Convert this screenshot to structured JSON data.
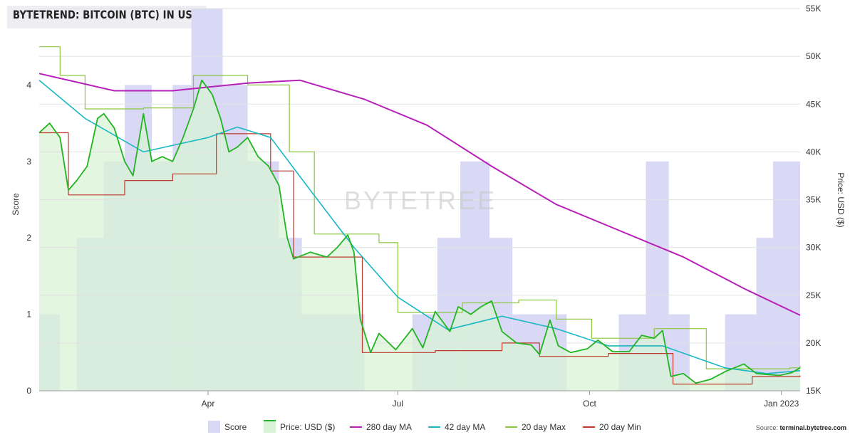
{
  "chart_data": {
    "type": "line",
    "title": "BYTETREND: BITCOIN (BTC) IN USD ($)",
    "watermark": "BYTETREE",
    "source_label": "Source: ",
    "source_site": "terminal.bytetree.com",
    "left_axis": {
      "label": "Score",
      "min": 0,
      "max": 5,
      "ticks": [
        "0",
        "1",
        "2",
        "3",
        "4"
      ]
    },
    "right_axis": {
      "label": "Price: USD ($)",
      "min": 15000,
      "max": 55000,
      "ticks": [
        "15K",
        "20K",
        "25K",
        "30K",
        "35K",
        "40K",
        "45K",
        "50K",
        "55K"
      ]
    },
    "x_axis": {
      "start": "2022-01-10",
      "end": "2023-01-10",
      "ticks": [
        {
          "date": "2022-04-01",
          "label": "Apr"
        },
        {
          "date": "2022-07-01",
          "label": "Jul"
        },
        {
          "date": "2022-10-01",
          "label": "Oct"
        },
        {
          "date": "2023-01-01",
          "label": "Jan 2023"
        }
      ]
    },
    "legend": [
      "Score",
      "Price: USD ($)",
      "280 day MA",
      "42 day MA",
      "20 day Max",
      "20 day Min"
    ],
    "colors": {
      "score": "#d9d9f5",
      "price_fill": "#d8f3d6",
      "price": "#22b422",
      "ma280": "#b81fb8",
      "ma42": "#1ab8c4",
      "max20": "#8cc63f",
      "min20": "#c0392b"
    },
    "score_series": [
      {
        "date": "2022-01-10",
        "value": 1
      },
      {
        "date": "2022-01-20",
        "value": 0
      },
      {
        "date": "2022-01-28",
        "value": 2
      },
      {
        "date": "2022-02-10",
        "value": 3
      },
      {
        "date": "2022-02-20",
        "value": 4
      },
      {
        "date": "2022-03-05",
        "value": 3
      },
      {
        "date": "2022-03-15",
        "value": 4
      },
      {
        "date": "2022-03-24",
        "value": 5
      },
      {
        "date": "2022-04-08",
        "value": 4
      },
      {
        "date": "2022-04-20",
        "value": 3
      },
      {
        "date": "2022-05-05",
        "value": 2
      },
      {
        "date": "2022-05-16",
        "value": 1
      },
      {
        "date": "2022-06-10",
        "value": 1
      },
      {
        "date": "2022-06-15",
        "value": 0
      },
      {
        "date": "2022-06-27",
        "value": 0
      },
      {
        "date": "2022-07-08",
        "value": 1
      },
      {
        "date": "2022-07-20",
        "value": 2
      },
      {
        "date": "2022-07-31",
        "value": 3
      },
      {
        "date": "2022-08-14",
        "value": 2
      },
      {
        "date": "2022-08-25",
        "value": 1
      },
      {
        "date": "2022-09-10",
        "value": 1
      },
      {
        "date": "2022-09-20",
        "value": 0
      },
      {
        "date": "2022-10-05",
        "value": 0
      },
      {
        "date": "2022-10-15",
        "value": 1
      },
      {
        "date": "2022-10-28",
        "value": 3
      },
      {
        "date": "2022-11-08",
        "value": 1
      },
      {
        "date": "2022-11-18",
        "value": 0
      },
      {
        "date": "2022-12-05",
        "value": 1
      },
      {
        "date": "2022-12-20",
        "value": 2
      },
      {
        "date": "2022-12-28",
        "value": 3
      },
      {
        "date": "2023-01-10",
        "value": 3
      }
    ],
    "series": [
      {
        "name": "Price: USD ($)",
        "values": [
          {
            "date": "2022-01-10",
            "value": 42000
          },
          {
            "date": "2022-01-15",
            "value": 43000
          },
          {
            "date": "2022-01-20",
            "value": 41500
          },
          {
            "date": "2022-01-24",
            "value": 36000
          },
          {
            "date": "2022-01-28",
            "value": 37000
          },
          {
            "date": "2022-02-02",
            "value": 38500
          },
          {
            "date": "2022-02-07",
            "value": 43500
          },
          {
            "date": "2022-02-10",
            "value": 44000
          },
          {
            "date": "2022-02-15",
            "value": 42500
          },
          {
            "date": "2022-02-20",
            "value": 39000
          },
          {
            "date": "2022-02-24",
            "value": 37500
          },
          {
            "date": "2022-03-01",
            "value": 44000
          },
          {
            "date": "2022-03-05",
            "value": 39000
          },
          {
            "date": "2022-03-10",
            "value": 39500
          },
          {
            "date": "2022-03-15",
            "value": 39000
          },
          {
            "date": "2022-03-20",
            "value": 41500
          },
          {
            "date": "2022-03-25",
            "value": 44500
          },
          {
            "date": "2022-03-29",
            "value": 47500
          },
          {
            "date": "2022-04-03",
            "value": 46000
          },
          {
            "date": "2022-04-07",
            "value": 43500
          },
          {
            "date": "2022-04-11",
            "value": 40000
          },
          {
            "date": "2022-04-15",
            "value": 40500
          },
          {
            "date": "2022-04-20",
            "value": 41500
          },
          {
            "date": "2022-04-25",
            "value": 39500
          },
          {
            "date": "2022-04-30",
            "value": 38500
          },
          {
            "date": "2022-05-05",
            "value": 36500
          },
          {
            "date": "2022-05-09",
            "value": 31000
          },
          {
            "date": "2022-05-12",
            "value": 28800
          },
          {
            "date": "2022-05-20",
            "value": 29500
          },
          {
            "date": "2022-05-28",
            "value": 29000
          },
          {
            "date": "2022-06-02",
            "value": 30000
          },
          {
            "date": "2022-06-07",
            "value": 31300
          },
          {
            "date": "2022-06-10",
            "value": 29500
          },
          {
            "date": "2022-06-13",
            "value": 22500
          },
          {
            "date": "2022-06-18",
            "value": 19000
          },
          {
            "date": "2022-06-22",
            "value": 21000
          },
          {
            "date": "2022-06-30",
            "value": 19300
          },
          {
            "date": "2022-07-08",
            "value": 21500
          },
          {
            "date": "2022-07-13",
            "value": 19500
          },
          {
            "date": "2022-07-19",
            "value": 23300
          },
          {
            "date": "2022-07-26",
            "value": 21200
          },
          {
            "date": "2022-07-30",
            "value": 23800
          },
          {
            "date": "2022-08-05",
            "value": 23000
          },
          {
            "date": "2022-08-10",
            "value": 23800
          },
          {
            "date": "2022-08-15",
            "value": 24400
          },
          {
            "date": "2022-08-20",
            "value": 21200
          },
          {
            "date": "2022-08-27",
            "value": 20000
          },
          {
            "date": "2022-09-03",
            "value": 19800
          },
          {
            "date": "2022-09-07",
            "value": 18800
          },
          {
            "date": "2022-09-12",
            "value": 22400
          },
          {
            "date": "2022-09-16",
            "value": 19700
          },
          {
            "date": "2022-09-22",
            "value": 19000
          },
          {
            "date": "2022-09-30",
            "value": 19400
          },
          {
            "date": "2022-10-05",
            "value": 20300
          },
          {
            "date": "2022-10-12",
            "value": 19100
          },
          {
            "date": "2022-10-20",
            "value": 19100
          },
          {
            "date": "2022-10-26",
            "value": 20800
          },
          {
            "date": "2022-11-01",
            "value": 20500
          },
          {
            "date": "2022-11-05",
            "value": 21300
          },
          {
            "date": "2022-11-09",
            "value": 16500
          },
          {
            "date": "2022-11-15",
            "value": 16800
          },
          {
            "date": "2022-11-21",
            "value": 15800
          },
          {
            "date": "2022-11-28",
            "value": 16200
          },
          {
            "date": "2022-12-05",
            "value": 17000
          },
          {
            "date": "2022-12-14",
            "value": 17800
          },
          {
            "date": "2022-12-20",
            "value": 16800
          },
          {
            "date": "2022-12-31",
            "value": 16600
          },
          {
            "date": "2023-01-06",
            "value": 16900
          },
          {
            "date": "2023-01-10",
            "value": 17400
          }
        ]
      },
      {
        "name": "280 day MA",
        "values": [
          {
            "date": "2022-01-10",
            "value": 48200
          },
          {
            "date": "2022-02-15",
            "value": 46400
          },
          {
            "date": "2022-03-15",
            "value": 46400
          },
          {
            "date": "2022-04-20",
            "value": 47200
          },
          {
            "date": "2022-05-15",
            "value": 47500
          },
          {
            "date": "2022-06-15",
            "value": 45500
          },
          {
            "date": "2022-07-15",
            "value": 42800
          },
          {
            "date": "2022-08-15",
            "value": 38500
          },
          {
            "date": "2022-09-15",
            "value": 34500
          },
          {
            "date": "2022-10-15",
            "value": 31800
          },
          {
            "date": "2022-11-15",
            "value": 29000
          },
          {
            "date": "2022-12-15",
            "value": 25600
          },
          {
            "date": "2023-01-10",
            "value": 22900
          }
        ]
      },
      {
        "name": "42 day MA",
        "values": [
          {
            "date": "2022-01-10",
            "value": 47500
          },
          {
            "date": "2022-02-01",
            "value": 43500
          },
          {
            "date": "2022-03-01",
            "value": 40000
          },
          {
            "date": "2022-04-01",
            "value": 41500
          },
          {
            "date": "2022-04-15",
            "value": 42600
          },
          {
            "date": "2022-05-01",
            "value": 41500
          },
          {
            "date": "2022-05-20",
            "value": 36000
          },
          {
            "date": "2022-06-10",
            "value": 30000
          },
          {
            "date": "2022-07-01",
            "value": 24800
          },
          {
            "date": "2022-07-25",
            "value": 21400
          },
          {
            "date": "2022-08-20",
            "value": 22800
          },
          {
            "date": "2022-09-15",
            "value": 21500
          },
          {
            "date": "2022-10-10",
            "value": 19700
          },
          {
            "date": "2022-11-05",
            "value": 19700
          },
          {
            "date": "2022-12-05",
            "value": 17400
          },
          {
            "date": "2022-12-25",
            "value": 16800
          },
          {
            "date": "2023-01-10",
            "value": 17100
          }
        ]
      },
      {
        "name": "20 day Max",
        "values": [
          {
            "date": "2022-01-10",
            "value": 51000
          },
          {
            "date": "2022-01-20",
            "value": 48000
          },
          {
            "date": "2022-02-01",
            "value": 44500
          },
          {
            "date": "2022-03-01",
            "value": 44600
          },
          {
            "date": "2022-03-25",
            "value": 48000
          },
          {
            "date": "2022-04-20",
            "value": 47000
          },
          {
            "date": "2022-05-10",
            "value": 40000
          },
          {
            "date": "2022-05-22",
            "value": 31400
          },
          {
            "date": "2022-06-22",
            "value": 30500
          },
          {
            "date": "2022-07-01",
            "value": 23200
          },
          {
            "date": "2022-08-01",
            "value": 24200
          },
          {
            "date": "2022-08-28",
            "value": 24500
          },
          {
            "date": "2022-09-15",
            "value": 22500
          },
          {
            "date": "2022-10-02",
            "value": 20500
          },
          {
            "date": "2022-11-01",
            "value": 21500
          },
          {
            "date": "2022-11-26",
            "value": 17300
          },
          {
            "date": "2023-01-05",
            "value": 17400
          },
          {
            "date": "2023-01-10",
            "value": 17600
          }
        ]
      },
      {
        "name": "20 day Min",
        "values": [
          {
            "date": "2022-01-10",
            "value": 42000
          },
          {
            "date": "2022-01-24",
            "value": 35500
          },
          {
            "date": "2022-02-20",
            "value": 37000
          },
          {
            "date": "2022-03-15",
            "value": 37700
          },
          {
            "date": "2022-04-05",
            "value": 41900
          },
          {
            "date": "2022-05-01",
            "value": 38000
          },
          {
            "date": "2022-05-12",
            "value": 29000
          },
          {
            "date": "2022-06-14",
            "value": 19000
          },
          {
            "date": "2022-07-19",
            "value": 19200
          },
          {
            "date": "2022-08-20",
            "value": 20000
          },
          {
            "date": "2022-09-07",
            "value": 18600
          },
          {
            "date": "2022-10-10",
            "value": 18900
          },
          {
            "date": "2022-11-10",
            "value": 15700
          },
          {
            "date": "2022-12-18",
            "value": 16500
          },
          {
            "date": "2023-01-10",
            "value": 16600
          }
        ]
      }
    ]
  }
}
